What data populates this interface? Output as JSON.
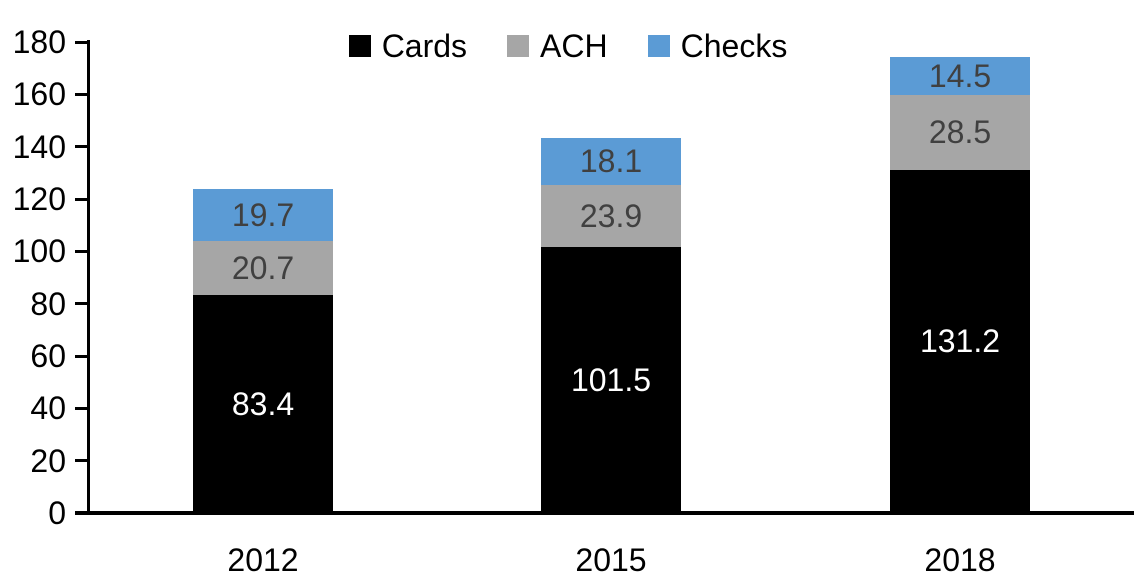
{
  "chart_data": {
    "type": "bar",
    "stacked": true,
    "title": "",
    "xlabel": "",
    "ylabel": "",
    "categories": [
      "2012",
      "2015",
      "2018"
    ],
    "series": [
      {
        "name": "Cards",
        "color": "#000000",
        "label_color": "#ffffff",
        "values": [
          83.4,
          101.5,
          131.2
        ]
      },
      {
        "name": "ACH",
        "color": "#a6a6a6",
        "label_color": "#404040",
        "values": [
          20.7,
          23.9,
          28.5
        ]
      },
      {
        "name": "Checks",
        "color": "#5b9bd5",
        "label_color": "#404040",
        "values": [
          19.7,
          18.1,
          14.5
        ]
      }
    ],
    "totals": [
      123.8,
      143.5,
      174.2
    ],
    "ylim": [
      0,
      180
    ],
    "ytick_step": 20,
    "yticks": [
      0,
      20,
      40,
      60,
      80,
      100,
      120,
      140,
      160,
      180
    ],
    "grid": false,
    "legend_position": "top-center",
    "axis_color": "#000000",
    "background_color": "#ffffff",
    "data_labels_visible": true
  }
}
